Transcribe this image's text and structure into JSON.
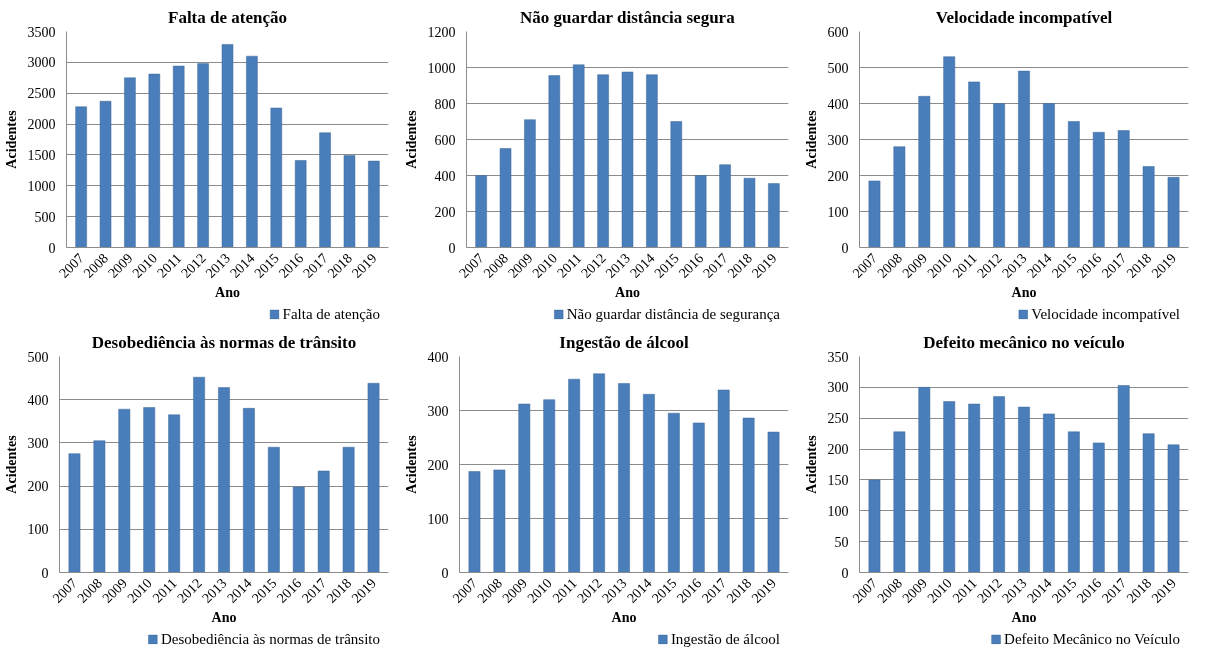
{
  "chart_data": [
    {
      "type": "bar",
      "title": "Falta de atenção",
      "xlabel": "Ano",
      "ylabel": "Acidentes",
      "categories": [
        "2007",
        "2008",
        "2009",
        "2010",
        "2011",
        "2012",
        "2013",
        "2014",
        "2015",
        "2016",
        "2017",
        "2018",
        "2019"
      ],
      "series": [
        {
          "name": "Falta de atenção",
          "color": "#4a7ebb",
          "values": [
            2280,
            2370,
            2750,
            2810,
            2940,
            2980,
            3290,
            3100,
            2260,
            1410,
            1860,
            1490,
            1400
          ]
        }
      ],
      "ylim": [
        0,
        3500
      ],
      "yticks": [
        0,
        500,
        1000,
        1500,
        2000,
        2500,
        3000,
        3500
      ],
      "grid": "y",
      "legend": "bottom"
    },
    {
      "type": "bar",
      "title": "Não guardar distância segura",
      "xlabel": "Ano",
      "ylabel": "Acidentes",
      "categories": [
        "2007",
        "2008",
        "2009",
        "2010",
        "2011",
        "2012",
        "2013",
        "2014",
        "2015",
        "2016",
        "2017",
        "2018",
        "2019"
      ],
      "series": [
        {
          "name": "Não guardar distância de segurança",
          "color": "#4a7ebb",
          "values": [
            400,
            550,
            710,
            955,
            1015,
            960,
            975,
            960,
            700,
            400,
            460,
            385,
            355
          ]
        }
      ],
      "ylim": [
        0,
        1200
      ],
      "yticks": [
        0,
        200,
        400,
        600,
        800,
        1000,
        1200
      ],
      "grid": "y",
      "legend": "bottom"
    },
    {
      "type": "bar",
      "title": "Velocidade incompatível",
      "xlabel": "Ano",
      "ylabel": "Acidentes",
      "categories": [
        "2007",
        "2008",
        "2009",
        "2010",
        "2011",
        "2012",
        "2013",
        "2014",
        "2015",
        "2016",
        "2017",
        "2018",
        "2019"
      ],
      "series": [
        {
          "name": "Velocidade incompatível",
          "color": "#4a7ebb",
          "values": [
            185,
            280,
            420,
            530,
            460,
            400,
            490,
            400,
            350,
            320,
            325,
            225,
            195
          ]
        }
      ],
      "ylim": [
        0,
        600
      ],
      "yticks": [
        0,
        100,
        200,
        300,
        400,
        500,
        600
      ],
      "grid": "y",
      "legend": "bottom"
    },
    {
      "type": "bar",
      "title": "Desobediência às normas de trânsito",
      "xlabel": "Ano",
      "ylabel": "Acidentes",
      "categories": [
        "2007",
        "2008",
        "2009",
        "2010",
        "2011",
        "2012",
        "2013",
        "2014",
        "2015",
        "2016",
        "2017",
        "2018",
        "2019"
      ],
      "series": [
        {
          "name": "Desobediência às normas de trânsito",
          "color": "#4a7ebb",
          "values": [
            275,
            305,
            378,
            382,
            365,
            452,
            428,
            380,
            290,
            198,
            235,
            290,
            438
          ]
        }
      ],
      "ylim": [
        0,
        500
      ],
      "yticks": [
        0,
        100,
        200,
        300,
        400,
        500
      ],
      "grid": "y",
      "legend": "bottom"
    },
    {
      "type": "bar",
      "title": "Ingestão de álcool",
      "xlabel": "Ano",
      "ylabel": "Acidentes",
      "categories": [
        "2007",
        "2008",
        "2009",
        "2010",
        "2011",
        "2012",
        "2013",
        "2014",
        "2015",
        "2016",
        "2017",
        "2018",
        "2019"
      ],
      "series": [
        {
          "name": "Ingestão de álcool",
          "color": "#4a7ebb",
          "values": [
            187,
            190,
            312,
            320,
            358,
            368,
            350,
            330,
            295,
            277,
            338,
            286,
            260
          ]
        }
      ],
      "ylim": [
        0,
        400
      ],
      "yticks": [
        0,
        100,
        200,
        300,
        400
      ],
      "grid": "y",
      "legend": "bottom"
    },
    {
      "type": "bar",
      "title": "Defeito mecânico no veículo",
      "xlabel": "Ano",
      "ylabel": "Acidentes",
      "categories": [
        "2007",
        "2008",
        "2009",
        "2010",
        "2011",
        "2012",
        "2013",
        "2014",
        "2015",
        "2016",
        "2017",
        "2018",
        "2019"
      ],
      "series": [
        {
          "name": "Defeito Mecânico no Veículo",
          "color": "#4a7ebb",
          "values": [
            150,
            228,
            300,
            277,
            273,
            285,
            268,
            257,
            228,
            210,
            303,
            225,
            207
          ]
        }
      ],
      "ylim": [
        0,
        350
      ],
      "yticks": [
        0,
        50,
        100,
        150,
        200,
        250,
        300,
        350
      ],
      "grid": "y",
      "legend": "bottom"
    }
  ]
}
